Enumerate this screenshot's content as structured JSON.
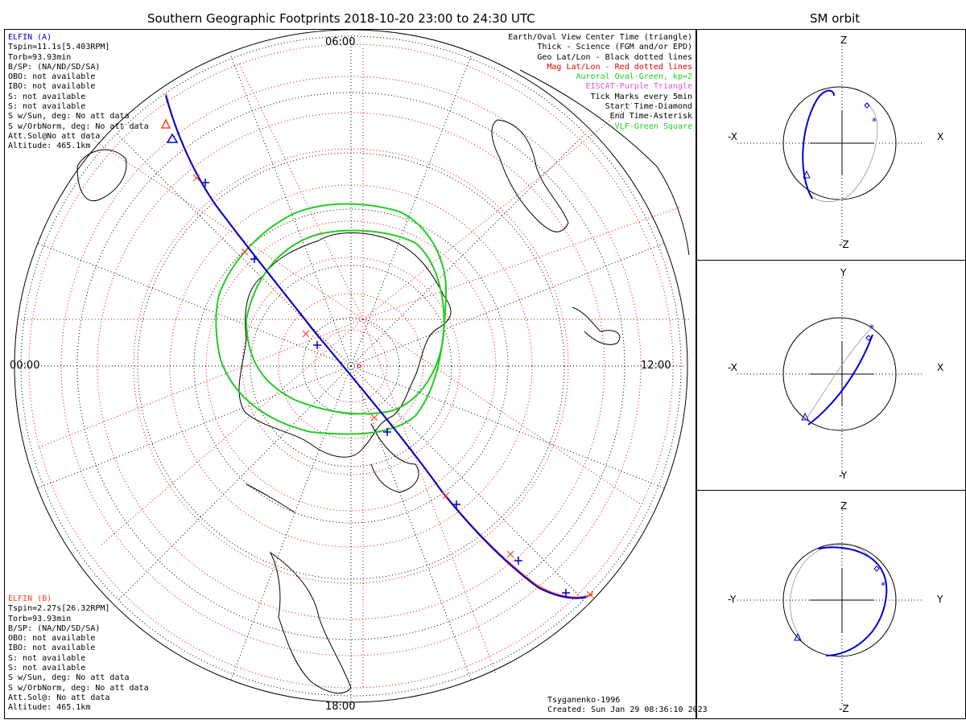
{
  "main_title": "Southern Geographic Footprints 2018-10-20 23:00 to 24:30 UTC",
  "side_title": "SM orbit",
  "time_labels": {
    "top": "06:00",
    "left": "00:00",
    "right": "12:00",
    "bottom": "18:00"
  },
  "elfin_a": {
    "name": "ELFIN (A)",
    "lines": [
      "Tspin=11.1s[5.403RPM]",
      "Torb=93.93min",
      "B/SP: (NA/ND/SD/SA)",
      "OBO: not available",
      "IBO: not available",
      "S: not available",
      "S: not available",
      "S w/Sun, deg: No att data",
      "S w/OrbNorm, deg: No att data",
      "Att.Sol@No att data",
      "Altitude: 465.1km"
    ]
  },
  "elfin_b": {
    "name": "ELFIN (B)",
    "lines": [
      "Tspin=2.27s[26.32RPM]",
      "Torb=93.93min",
      "B/SP: (NA/ND/SD/SA)",
      "OBO: not available",
      "IBO: not available",
      "S: not available",
      "S: not available",
      "S w/Sun, deg: No att data",
      "S w/OrbNorm, deg: No att data",
      "Att.Sol@: No att data",
      "Altitude: 465.1km"
    ]
  },
  "legend": [
    {
      "text": "Earth/Oval View Center Time (triangle)",
      "color": "#000000"
    },
    {
      "text": "Thick - Science (FGM and/or EPD)",
      "color": "#000000"
    },
    {
      "text": "Geo Lat/Lon - Black dotted lines",
      "color": "#000000"
    },
    {
      "text": "Mag Lat/Lon - Red dotted lines",
      "color": "#e00000"
    },
    {
      "text": "Auroral Oval-Green, kp=2",
      "color": "#22cc22"
    },
    {
      "text": "EISCAT-Purple Triangle",
      "color": "#dd55dd"
    },
    {
      "text": "Tick Marks every 5min",
      "color": "#000000"
    },
    {
      "text": "Start Time-Diamond",
      "color": "#000000"
    },
    {
      "text": "End Time-Asterisk",
      "color": "#000000"
    },
    {
      "text": "VLF-Green Square",
      "color": "#22cc22"
    }
  ],
  "model": "Tsyganenko-1996",
  "created": "Created: Sun Jan 29 08:36:10 2023",
  "orbit_panels": [
    {
      "top": "Z",
      "bottom": "-Z",
      "left": "-X",
      "right": "X"
    },
    {
      "top": "Y",
      "bottom": "-Y",
      "left": "-X",
      "right": "X"
    },
    {
      "top": "Z",
      "bottom": "-Z",
      "left": "-Y",
      "right": "Y"
    }
  ],
  "colors": {
    "elfin_a": "#0000cc",
    "elfin_b": "#ff4422",
    "oval": "#22cc22",
    "mag_grid": "#e00000",
    "geo_grid": "#000000",
    "orbit_grey": "#aaaaaa"
  }
}
